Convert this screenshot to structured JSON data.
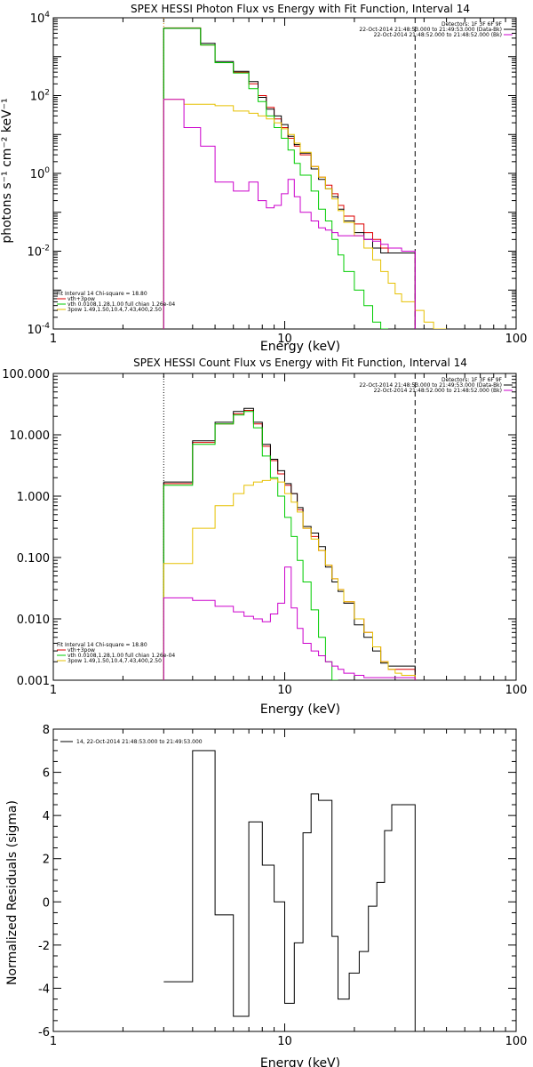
{
  "chart_data": [
    {
      "type": "line",
      "title": "SPEX HESSI Photon Flux vs Energy with Fit Function, Interval 14",
      "xlabel": "Energy (keV)",
      "ylabel": "photons s⁻¹ cm⁻² keV⁻¹",
      "xscale": "log",
      "yscale": "log",
      "xlim": [
        1,
        100
      ],
      "ylim": [
        0.0001,
        10000
      ],
      "x_ticks": [
        1,
        10,
        100
      ],
      "x_tick_labels": [
        "1",
        "10",
        "100"
      ],
      "y_ticks": [
        0.0001,
        0.01,
        1,
        100,
        10000
      ],
      "y_tick_labels": [
        "10^-4",
        "10^-2",
        "10^0",
        "10^2",
        "10^4"
      ],
      "vlines": [
        {
          "x": 3,
          "style": "dotted",
          "color": "#d88000"
        },
        {
          "x": 36.6,
          "style": "dashed",
          "color": "#000000"
        }
      ],
      "legend_top_right": [
        {
          "text": "Detectors: 1F 3F 6F 9F",
          "color": "#000000"
        },
        {
          "text": "22-Oct-2014 21:48:53.000 to 21:49:53.000 (Data-Bk)",
          "color": "#000000"
        },
        {
          "text": "22-Oct-2014 21:48:52.000 to 21:48:52.000 (Bk)",
          "color": "#cc00cc"
        }
      ],
      "legend_bottom_left": [
        {
          "text": "Fit Interval 14    Chi-square = 18.80",
          "color": "#000000"
        },
        {
          "text": "vth+3pow",
          "color": "#dd0000"
        },
        {
          "text": "vth 0.0108,1.28,1.00  full chian 1.26e-04",
          "color": "#00cc00"
        },
        {
          "text": "3pow 1.49,1.50,10.4,7.43,400,2.50",
          "color": "#e6c000"
        }
      ],
      "edges": [
        3.0,
        3.3,
        3.67,
        4.0,
        4.33,
        4.67,
        5.0,
        5.33,
        5.67,
        6.0,
        6.33,
        6.67,
        7.0,
        7.33,
        7.67,
        8.0,
        8.33,
        8.67,
        9.0,
        9.33,
        9.67,
        10.0,
        10.33,
        10.67,
        11.0,
        11.33,
        11.67,
        12.0,
        13.0,
        14.0,
        15.0,
        16.0,
        17.0,
        18.0,
        20.0,
        22.0,
        24.0,
        26.0,
        28.0,
        30.0,
        32.0,
        36.6,
        40.0,
        44.0,
        50.0
      ],
      "series": [
        {
          "name": "vth+3pow",
          "color": "#dd0000",
          "values": [
            5500,
            5500,
            5500,
            5500,
            2000,
            2000,
            700,
            700,
            700,
            400,
            400,
            400,
            200,
            200,
            100,
            100,
            50,
            50,
            25,
            25,
            15,
            15,
            8,
            8,
            5,
            5,
            3,
            3,
            1.5,
            0.8,
            0.5,
            0.3,
            0.15,
            0.08,
            0.05,
            0.03,
            0.02,
            0.012,
            0.009,
            0.009,
            0.009
          ]
        },
        {
          "name": "data",
          "color": "#000000",
          "values": [
            5400,
            5400,
            5400,
            5400,
            2200,
            2200,
            750,
            750,
            750,
            420,
            420,
            420,
            230,
            230,
            90,
            90,
            45,
            45,
            30,
            30,
            18,
            18,
            9,
            9,
            5.5,
            5.5,
            3.3,
            3.3,
            1.3,
            0.7,
            0.4,
            0.25,
            0.12,
            0.06,
            0.03,
            0.02,
            0.012,
            0.009,
            0.009,
            0.009,
            0.009
          ]
        },
        {
          "name": "vth",
          "color": "#00cc00",
          "values": [
            5400,
            5400,
            5400,
            5400,
            2000,
            2000,
            700,
            700,
            700,
            380,
            380,
            380,
            150,
            150,
            70,
            70,
            30,
            30,
            15,
            15,
            8,
            8,
            4,
            4,
            1.8,
            1.8,
            0.9,
            0.9,
            0.35,
            0.12,
            0.06,
            0.02,
            0.008,
            0.003,
            0.001,
            0.0004,
            0.00015,
            5e-05,
            null,
            null,
            null
          ]
        },
        {
          "name": "3pow",
          "color": "#e6c000",
          "values": [
            80,
            80,
            60,
            60,
            60,
            60,
            55,
            55,
            55,
            40,
            40,
            40,
            35,
            35,
            30,
            30,
            25,
            25,
            20,
            20,
            14,
            14,
            10,
            10,
            6,
            6,
            3.5,
            3.5,
            1.5,
            0.8,
            0.4,
            0.22,
            0.11,
            0.055,
            0.025,
            0.012,
            0.006,
            0.003,
            0.0015,
            0.0008,
            0.0005,
            0.0003,
            0.00015,
            9e-05
          ]
        },
        {
          "name": "background",
          "color": "#cc00cc",
          "values": [
            80,
            80,
            15,
            15,
            5,
            5,
            0.6,
            0.6,
            0.6,
            0.35,
            0.35,
            0.35,
            0.6,
            0.6,
            0.2,
            0.2,
            0.13,
            0.13,
            0.15,
            0.15,
            0.3,
            0.3,
            0.7,
            0.7,
            0.25,
            0.25,
            0.1,
            0.1,
            0.06,
            0.04,
            0.035,
            0.03,
            0.025,
            0.025,
            0.025,
            0.02,
            0.018,
            0.015,
            0.012,
            0.012,
            0.01
          ]
        }
      ]
    },
    {
      "type": "line",
      "title": "SPEX HESSI Count Flux vs Energy with Fit Function, Interval 14",
      "xlabel": "Energy (keV)",
      "ylabel": "",
      "xscale": "log",
      "yscale": "log",
      "xlim": [
        1,
        100
      ],
      "ylim": [
        0.001,
        100
      ],
      "x_ticks": [
        1,
        10,
        100
      ],
      "x_tick_labels": [
        "1",
        "10",
        "100"
      ],
      "y_ticks": [
        0.001,
        0.01,
        0.1,
        1,
        10,
        100
      ],
      "y_tick_labels": [
        "0.001",
        "0.010",
        "0.100",
        "1.000",
        "10.000",
        "100.000"
      ],
      "vlines": [
        {
          "x": 3,
          "style": "dotted",
          "color": "#000000"
        },
        {
          "x": 36.6,
          "style": "dashed",
          "color": "#000000"
        }
      ],
      "legend_top_right": [
        {
          "text": "Detectors: 1F 3F 6F 9F",
          "color": "#000000"
        },
        {
          "text": "22-Oct-2014 21:48:53.000 to 21:49:53.000 (Data-Bk)",
          "color": "#000000"
        },
        {
          "text": "22-Oct-2014 21:48:52.000 to 21:48:52.000 (Bk)",
          "color": "#cc00cc"
        }
      ],
      "legend_bottom_left": [
        {
          "text": "Fit Interval 14    Chi-square = 18.80",
          "color": "#000000"
        },
        {
          "text": "vth+3pow",
          "color": "#dd0000"
        },
        {
          "text": "vth 0.0108,1.28,1.00  full chian 1.26e-04",
          "color": "#00cc00"
        },
        {
          "text": "3pow 1.49,1.50,10.4,7.43,400,2.50",
          "color": "#e6c000"
        }
      ],
      "edges": [
        3.0,
        4.0,
        5.0,
        6.0,
        6.67,
        7.33,
        8.0,
        8.67,
        9.33,
        10.0,
        10.67,
        11.33,
        12.0,
        13.0,
        14.0,
        15.0,
        16.0,
        17.0,
        18.0,
        20.0,
        22.0,
        24.0,
        26.0,
        28.0,
        30.0,
        32.0,
        36.6
      ],
      "series": [
        {
          "name": "vth+3pow",
          "color": "#dd0000",
          "values": [
            1.6,
            7.5,
            15,
            22,
            25,
            15,
            6.5,
            3.8,
            2.3,
            1.5,
            1.1,
            0.6,
            0.3,
            0.22,
            0.13,
            0.075,
            0.045,
            0.03,
            0.019,
            0.01,
            0.006,
            0.0035,
            0.002,
            0.0015,
            0.0015,
            0.0015
          ]
        },
        {
          "name": "data",
          "color": "#000000",
          "values": [
            1.7,
            8,
            16,
            24,
            27,
            16,
            7,
            4,
            2.6,
            1.6,
            1.1,
            0.65,
            0.32,
            0.25,
            0.15,
            0.07,
            0.04,
            0.028,
            0.018,
            0.008,
            0.005,
            0.003,
            0.0019,
            0.0017,
            0.0017,
            0.0017
          ]
        },
        {
          "name": "vth",
          "color": "#00cc00",
          "values": [
            1.5,
            7,
            15,
            21,
            24,
            13,
            4.5,
            2,
            1,
            0.45,
            0.22,
            0.09,
            0.04,
            0.014,
            0.005,
            0.002,
            0.001,
            null,
            null,
            null,
            null,
            null,
            null,
            null,
            null,
            null
          ]
        },
        {
          "name": "3pow",
          "color": "#e6c000",
          "values": [
            0.08,
            0.3,
            0.7,
            1.1,
            1.5,
            1.7,
            1.8,
            1.9,
            1.7,
            1.1,
            0.8,
            0.55,
            0.3,
            0.2,
            0.13,
            0.075,
            0.045,
            0.03,
            0.019,
            0.01,
            0.006,
            0.0035,
            0.002,
            0.0015,
            0.0013,
            0.0012
          ]
        },
        {
          "name": "background",
          "color": "#cc00cc",
          "values": [
            0.022,
            0.02,
            0.016,
            0.013,
            0.011,
            0.01,
            0.009,
            0.012,
            0.018,
            0.07,
            0.015,
            0.007,
            0.004,
            0.003,
            0.0025,
            0.002,
            0.0017,
            0.0015,
            0.0013,
            0.0012,
            0.0011,
            0.0011,
            0.0011,
            0.0011,
            0.0011,
            0.0011
          ]
        }
      ]
    },
    {
      "type": "line",
      "title": "",
      "xlabel": "Energy (keV)",
      "ylabel": "Normalized Residuals (sigma)",
      "xscale": "log",
      "yscale": "linear",
      "xlim": [
        1,
        100
      ],
      "ylim": [
        -6,
        8
      ],
      "x_ticks": [
        1,
        10,
        100
      ],
      "x_tick_labels": [
        "1",
        "10",
        "100"
      ],
      "y_ticks": [
        -6,
        -4,
        -2,
        0,
        2,
        4,
        6,
        8
      ],
      "y_tick_labels": [
        "-6",
        "-4",
        "-2",
        "0",
        "2",
        "4",
        "6",
        "8"
      ],
      "legend_top_left": [
        {
          "text": "14, 22-Oct-2014 21:48:53.000 to 21:49:53.000",
          "color": "#000000"
        }
      ],
      "edges": [
        3.0,
        4.0,
        5.0,
        6.0,
        7.0,
        8.0,
        9.0,
        10.0,
        11.0,
        12.0,
        13.0,
        14.0,
        16.0,
        17.0,
        19.0,
        21.0,
        23.0,
        25.0,
        27.0,
        29.0,
        32.0,
        35.0,
        36.6
      ],
      "series": [
        {
          "name": "residuals",
          "color": "#000000",
          "values": [
            -3.7,
            7.0,
            -0.6,
            -5.3,
            3.7,
            1.7,
            0.0,
            -4.7,
            -1.9,
            3.2,
            5.0,
            4.7,
            -1.6,
            -4.5,
            -3.3,
            -2.3,
            -0.2,
            0.9,
            3.3,
            4.5,
            4.5,
            4.5
          ]
        }
      ]
    }
  ]
}
